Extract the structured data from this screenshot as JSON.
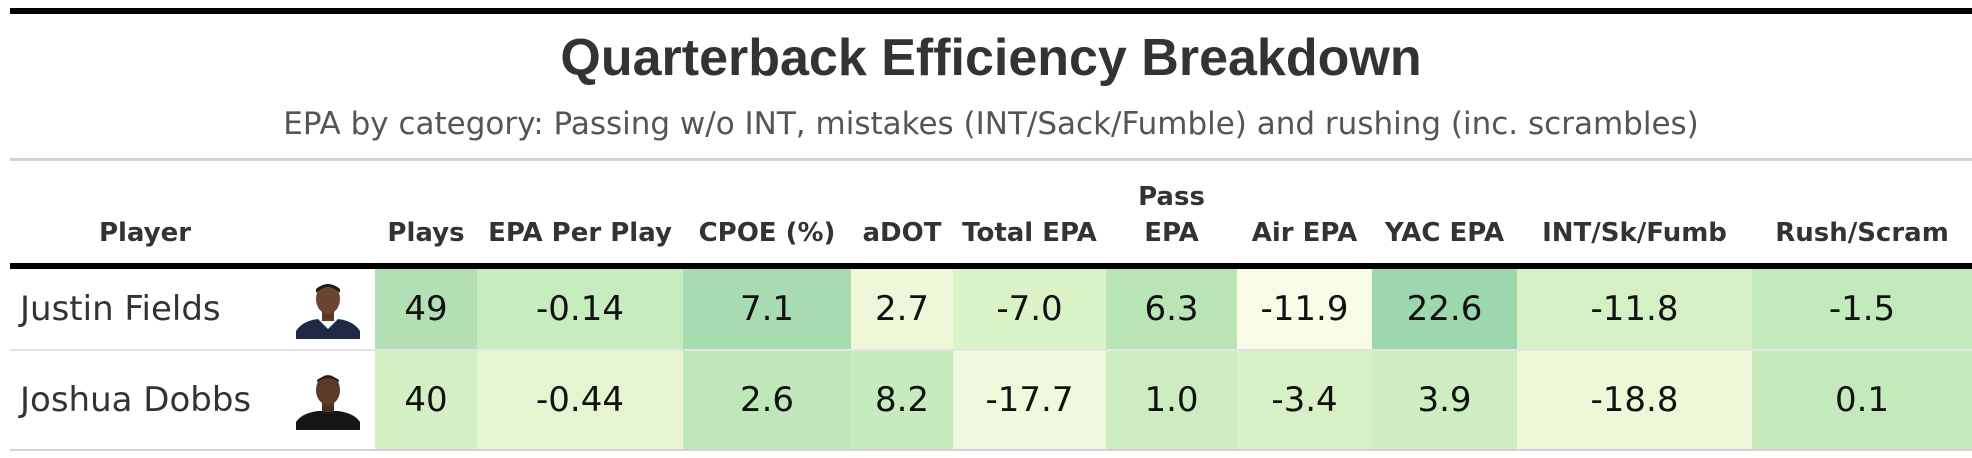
{
  "title": "Quarterback Efficiency Breakdown",
  "subtitle": "EPA by category: Passing w/o INT, mistakes (INT/Sack/Fumble) and rushing (inc. scrambles)",
  "columns": {
    "player": "Player",
    "plays": "Plays",
    "epa_per_play": "EPA Per Play",
    "cpoe": "CPOE (%)",
    "adot": "aDOT",
    "total_epa": "Total EPA",
    "pass_epa": "Pass EPA",
    "air_epa": "Air EPA",
    "yac_epa": "YAC EPA",
    "int_sk_fumb": "INT/Sk/Fumb",
    "rush_scram": "Rush/Scram"
  },
  "rows": [
    {
      "player": "Justin Fields",
      "headshot_icon": "player-headshot-icon",
      "cells": {
        "plays": {
          "text": "49",
          "color": "#b2e0b4"
        },
        "epa_per_play": {
          "text": "-0.14",
          "color": "#c7ecbe"
        },
        "cpoe": {
          "text": "7.1",
          "color": "#a8dcb0"
        },
        "adot": {
          "text": "2.7",
          "color": "#eef8d8"
        },
        "total_epa": {
          "text": "-7.0",
          "color": "#d9f2c6"
        },
        "pass_epa": {
          "text": "6.3",
          "color": "#b8e4b6"
        },
        "air_epa": {
          "text": "-11.9",
          "color": "#f8fbe6"
        },
        "yac_epa": {
          "text": "22.6",
          "color": "#9dd7ad"
        },
        "int_sk_fumb": {
          "text": "-11.8",
          "color": "#d4f0c4"
        },
        "rush_scram": {
          "text": "-1.5",
          "color": "#c3eabc"
        }
      }
    },
    {
      "player": "Joshua Dobbs",
      "headshot_icon": "player-headshot-icon",
      "cells": {
        "plays": {
          "text": "40",
          "color": "#d3efc3"
        },
        "epa_per_play": {
          "text": "-0.44",
          "color": "#e5f5cf"
        },
        "cpoe": {
          "text": "2.6",
          "color": "#bfe7b9"
        },
        "adot": {
          "text": "8.2",
          "color": "#c6ebbd"
        },
        "total_epa": {
          "text": "-17.7",
          "color": "#f1f9dd"
        },
        "pass_epa": {
          "text": "1.0",
          "color": "#cbedc0"
        },
        "air_epa": {
          "text": "-3.4",
          "color": "#d6f1c5"
        },
        "yac_epa": {
          "text": "3.9",
          "color": "#cdeec1"
        },
        "int_sk_fumb": {
          "text": "-18.8",
          "color": "#eef8d9"
        },
        "rush_scram": {
          "text": "0.1",
          "color": "#c4eabc"
        }
      }
    }
  ],
  "chart_data": {
    "type": "table",
    "title": "Quarterback Efficiency Breakdown",
    "subtitle": "EPA by category: Passing w/o INT, mistakes (INT/Sack/Fumble) and rushing (inc. scrambles)",
    "columns": [
      "Player",
      "Plays",
      "EPA Per Play",
      "CPOE (%)",
      "aDOT",
      "Total EPA",
      "Pass EPA",
      "Air EPA",
      "YAC EPA",
      "INT/Sk/Fumb",
      "Rush/Scram"
    ],
    "rows": [
      [
        "Justin Fields",
        49,
        -0.14,
        7.1,
        2.7,
        -7.0,
        6.3,
        -11.9,
        22.6,
        -11.8,
        -1.5
      ],
      [
        "Joshua Dobbs",
        40,
        -0.44,
        2.6,
        8.2,
        -17.7,
        1.0,
        -3.4,
        3.9,
        -18.8,
        0.1
      ]
    ]
  }
}
